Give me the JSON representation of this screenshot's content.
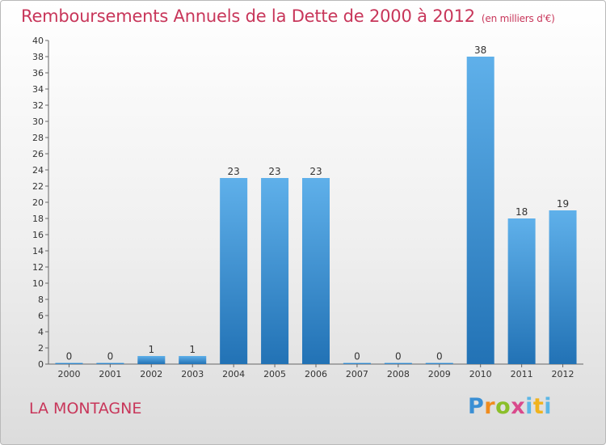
{
  "title": "Remboursements Annuels de la Dette de 2000 à 2012",
  "subtitle": "(en milliers d'€)",
  "commune": "LA MONTAGNE",
  "logo": {
    "p": "P",
    "r": "r",
    "o": "o",
    "x": "x",
    "i": "i",
    "t": "t",
    "i2": "i"
  },
  "chart_data": {
    "type": "bar",
    "title": "Remboursements Annuels de la Dette de 2000 à 2012",
    "subtitle": "(en milliers d'€)",
    "xlabel": "",
    "ylabel": "",
    "categories": [
      "2000",
      "2001",
      "2002",
      "2003",
      "2004",
      "2005",
      "2006",
      "2007",
      "2008",
      "2009",
      "2010",
      "2011",
      "2012"
    ],
    "values": [
      0,
      0,
      1,
      1,
      23,
      23,
      23,
      0,
      0,
      0,
      38,
      18,
      19
    ],
    "data_labels": [
      "0",
      "0",
      "1",
      "1",
      "23",
      "23",
      "23",
      "0",
      "0",
      "0",
      "38",
      "18",
      "19"
    ],
    "ylim": [
      0,
      40
    ],
    "yticks": [
      0,
      2,
      4,
      6,
      8,
      10,
      12,
      14,
      16,
      18,
      20,
      22,
      24,
      26,
      28,
      30,
      32,
      34,
      36,
      38,
      40
    ],
    "grid": false,
    "legend": "none",
    "bar_color": "#3a8fd6"
  }
}
